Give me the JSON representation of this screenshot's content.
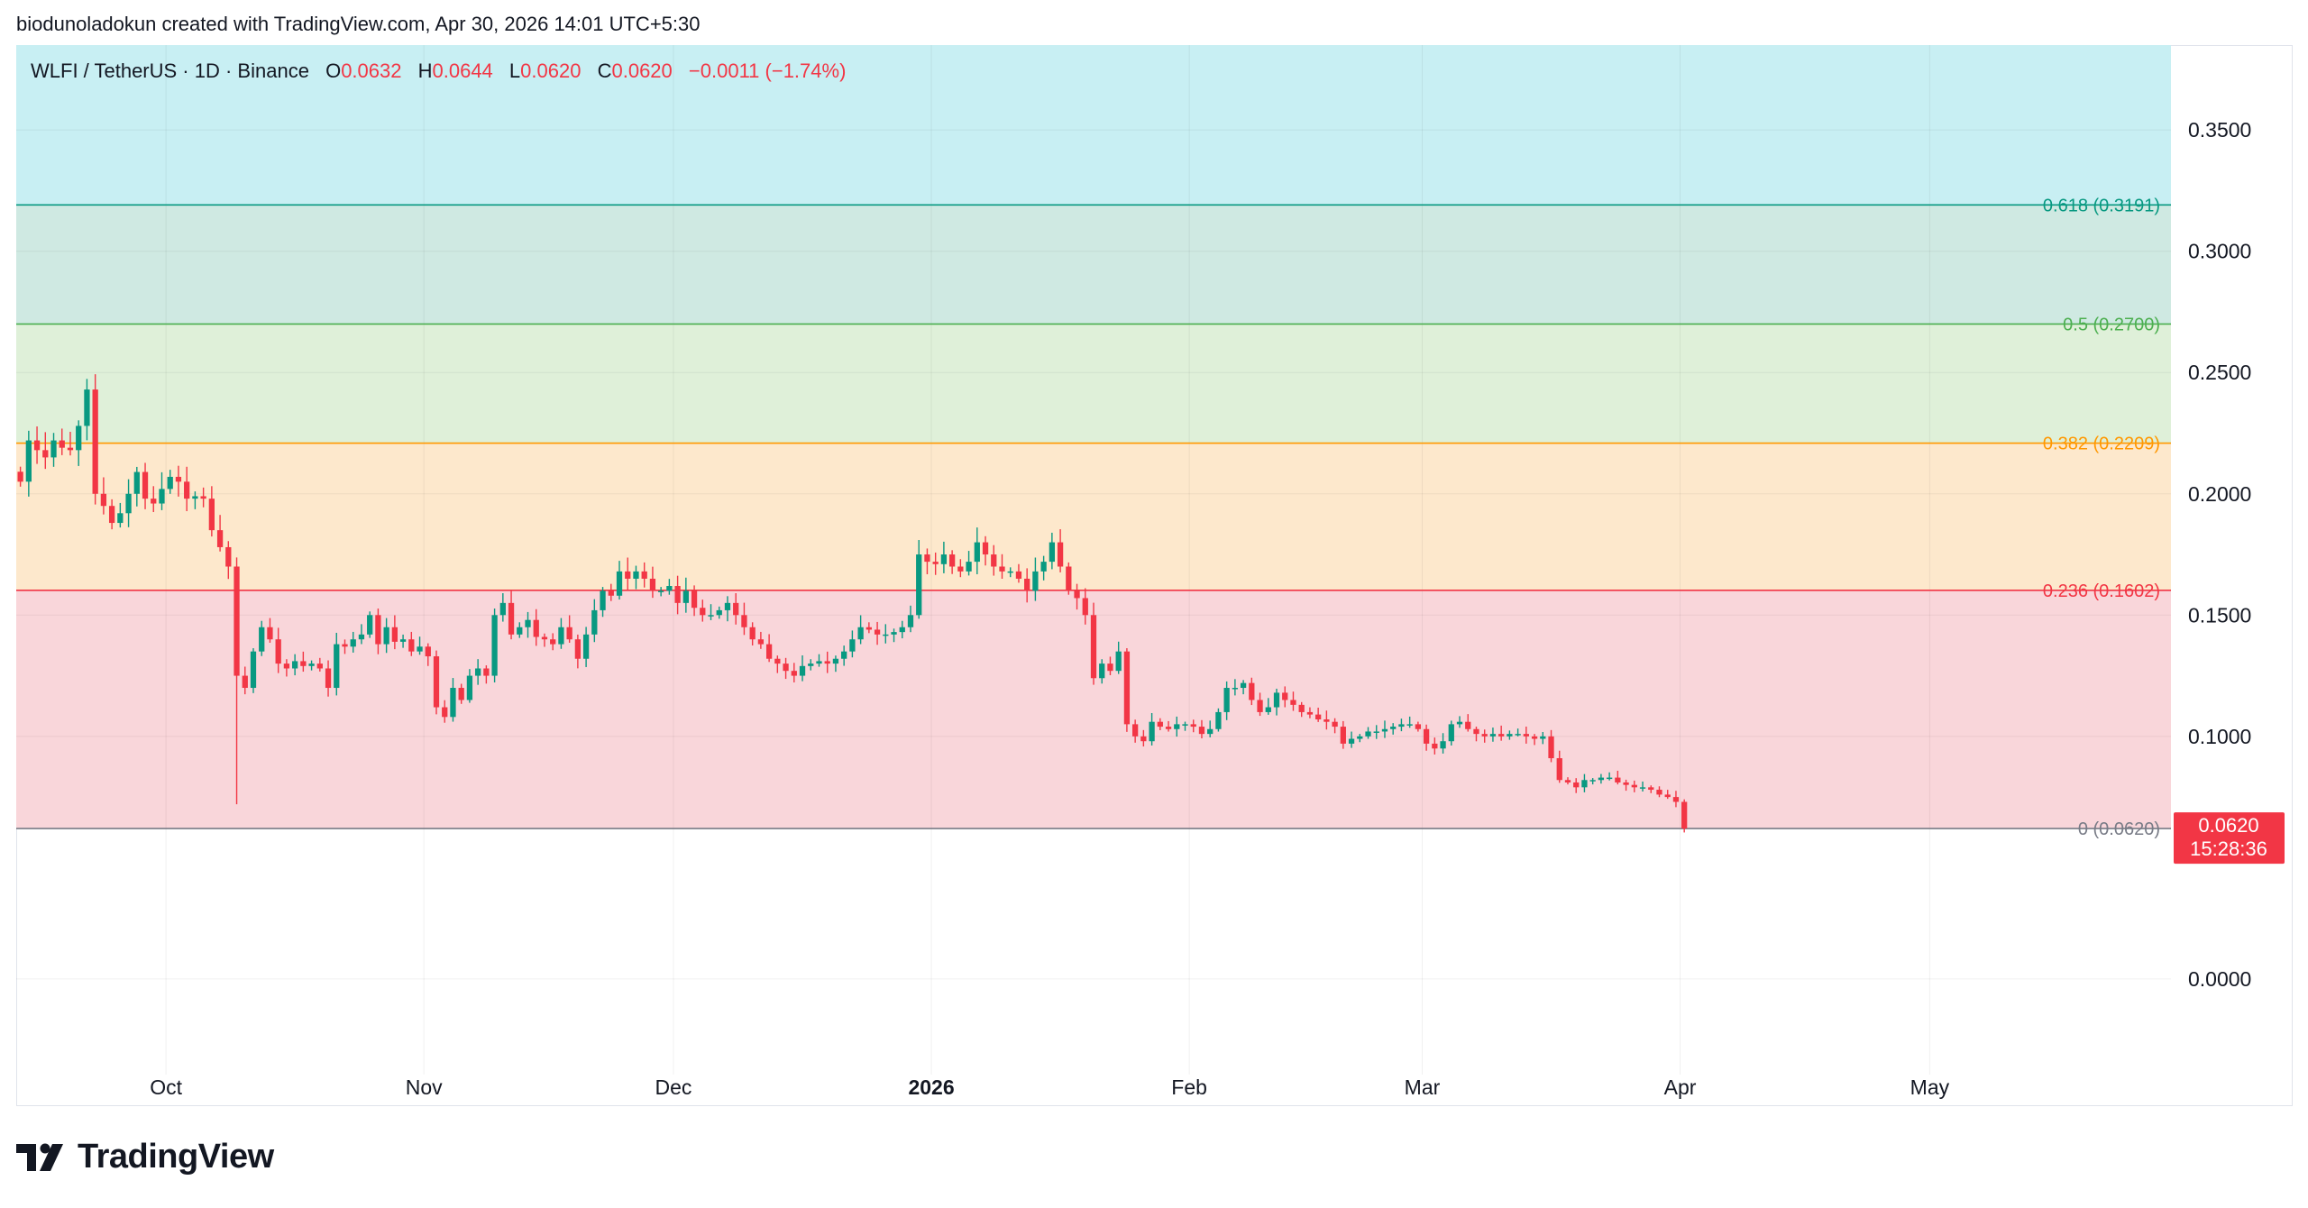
{
  "header": {
    "text": "biodunoladokun created with TradingView.com, Apr 30, 2026 14:01 UTC+5:30"
  },
  "legend": {
    "symbol": "WLFI / TetherUS · 1D · Binance",
    "o_label": "O",
    "o_value": "0.0632",
    "h_label": "H",
    "h_value": "0.0644",
    "l_label": "L",
    "l_value": "0.0620",
    "c_label": "C",
    "c_value": "0.0620",
    "change": "−0.0011 (−1.74%)"
  },
  "colors": {
    "up": "#089981",
    "down": "#f23645",
    "zone_top": "#c8eff3",
    "zone_618": "#cfe9e2",
    "zone_5": "#dff0d9",
    "zone_382": "#fde8cc",
    "zone_236": "#f9d6da",
    "line_618": "#089981",
    "line_5": "#4caf50",
    "line_382": "#ff9800",
    "line_236": "#f23645",
    "line_0": "#787b86"
  },
  "chart_data": {
    "type": "candlestick",
    "title": "WLFI / TetherUS · 1D · Binance",
    "y_axis": {
      "ticks": [
        "0.3500",
        "0.3000",
        "0.2500",
        "0.2000",
        "0.1500",
        "0.1000",
        "0.0000"
      ],
      "tick_values": [
        0.35,
        0.3,
        0.25,
        0.2,
        0.15,
        0.1,
        0.0
      ],
      "range": [
        -0.032,
        0.385
      ]
    },
    "x_axis": {
      "labels": [
        "Oct",
        "Nov",
        "Dec",
        "2026",
        "Feb",
        "Mar",
        "Apr",
        "May"
      ],
      "label_dates": [
        "2025-10-01",
        "2025-11-01",
        "2025-12-01",
        "2026-01-01",
        "2026-02-01",
        "2026-03-01",
        "2026-04-01",
        "2026-05-01"
      ],
      "bold_labels": [
        "2026"
      ],
      "start_date": "2025-09-13",
      "end_date": "2026-05-30"
    },
    "fib_levels": [
      {
        "ratio": "0.618",
        "value": 0.3191,
        "label": "0.618 (0.3191)"
      },
      {
        "ratio": "0.5",
        "value": 0.27,
        "label": "0.5 (0.2700)"
      },
      {
        "ratio": "0.382",
        "value": 0.2209,
        "label": "0.382 (0.2209)"
      },
      {
        "ratio": "0.236",
        "value": 0.1602,
        "label": "0.236 (0.1602)"
      },
      {
        "ratio": "0",
        "value": 0.062,
        "label": "0 (0.0620)"
      }
    ],
    "last_price": {
      "value": "0.0620",
      "countdown": "15:28:36"
    },
    "grid": true,
    "legend_placement": "top-left",
    "closes": [
      0.205,
      0.222,
      0.218,
      0.215,
      0.222,
      0.219,
      0.218,
      0.228,
      0.243,
      0.2,
      0.195,
      0.188,
      0.192,
      0.2,
      0.209,
      0.198,
      0.196,
      0.202,
      0.207,
      0.205,
      0.198,
      0.199,
      0.198,
      0.185,
      0.178,
      0.17,
      0.125,
      0.12,
      0.135,
      0.145,
      0.14,
      0.13,
      0.128,
      0.131,
      0.129,
      0.13,
      0.128,
      0.12,
      0.138,
      0.137,
      0.14,
      0.142,
      0.15,
      0.138,
      0.145,
      0.139,
      0.14,
      0.135,
      0.137,
      0.133,
      0.112,
      0.108,
      0.12,
      0.115,
      0.125,
      0.128,
      0.125,
      0.15,
      0.155,
      0.142,
      0.145,
      0.148,
      0.141,
      0.14,
      0.138,
      0.145,
      0.14,
      0.132,
      0.142,
      0.152,
      0.16,
      0.158,
      0.168,
      0.165,
      0.168,
      0.165,
      0.16,
      0.16,
      0.162,
      0.155,
      0.16,
      0.153,
      0.15,
      0.15,
      0.152,
      0.155,
      0.15,
      0.145,
      0.14,
      0.138,
      0.132,
      0.13,
      0.127,
      0.125,
      0.129,
      0.13,
      0.131,
      0.13,
      0.132,
      0.135,
      0.14,
      0.145,
      0.144,
      0.142,
      0.142,
      0.143,
      0.145,
      0.15,
      0.175,
      0.172,
      0.171,
      0.175,
      0.17,
      0.168,
      0.172,
      0.18,
      0.175,
      0.17,
      0.168,
      0.168,
      0.165,
      0.16,
      0.168,
      0.172,
      0.18,
      0.17,
      0.16,
      0.157,
      0.15,
      0.124,
      0.13,
      0.127,
      0.135,
      0.105,
      0.1,
      0.098,
      0.106,
      0.104,
      0.103,
      0.105,
      0.105,
      0.104,
      0.101,
      0.103,
      0.11,
      0.12,
      0.12,
      0.122,
      0.115,
      0.11,
      0.112,
      0.118,
      0.115,
      0.113,
      0.11,
      0.109,
      0.107,
      0.106,
      0.104,
      0.097,
      0.099,
      0.1,
      0.102,
      0.102,
      0.103,
      0.104,
      0.105,
      0.105,
      0.103,
      0.097,
      0.095,
      0.098,
      0.105,
      0.106,
      0.103,
      0.101,
      0.1,
      0.101,
      0.1,
      0.101,
      0.101,
      0.1,
      0.099,
      0.1,
      0.091,
      0.082,
      0.081,
      0.079,
      0.082,
      0.082,
      0.083,
      0.083,
      0.081,
      0.08,
      0.079,
      0.079,
      0.078,
      0.076,
      0.075,
      0.073,
      0.062
    ]
  },
  "footer": {
    "brand": "TradingView"
  }
}
